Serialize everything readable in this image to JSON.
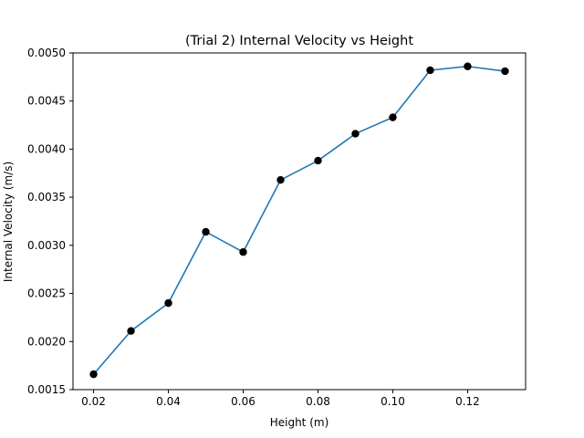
{
  "chart_data": {
    "type": "line",
    "title": "(Trial 2) Internal Velocity vs Height",
    "xlabel": "Height (m)",
    "ylabel": "Internal Velocity (m/s)",
    "xlim": [
      0.0145,
      0.1355
    ],
    "ylim": [
      0.0015,
      0.005
    ],
    "grid": false,
    "x_ticks": [
      0.02,
      0.04,
      0.06,
      0.08,
      0.1,
      0.12
    ],
    "x_tick_labels": [
      "0.02",
      "0.04",
      "0.06",
      "0.08",
      "0.10",
      "0.12"
    ],
    "y_ticks": [
      0.0015,
      0.002,
      0.0025,
      0.003,
      0.0035,
      0.004,
      0.0045,
      0.005
    ],
    "y_tick_labels": [
      "0.0015",
      "0.0020",
      "0.0025",
      "0.0030",
      "0.0035",
      "0.0040",
      "0.0045",
      "0.0050"
    ],
    "series": [
      {
        "name": "Trial 2",
        "line_color": "#1f77b4",
        "marker_color": "#000000",
        "x": [
          0.02,
          0.03,
          0.04,
          0.05,
          0.06,
          0.07,
          0.08,
          0.09,
          0.1,
          0.11,
          0.12,
          0.13
        ],
        "y": [
          0.00166,
          0.00211,
          0.0024,
          0.00314,
          0.00293,
          0.00368,
          0.00388,
          0.00416,
          0.00433,
          0.00482,
          0.00486,
          0.00481
        ]
      }
    ]
  }
}
